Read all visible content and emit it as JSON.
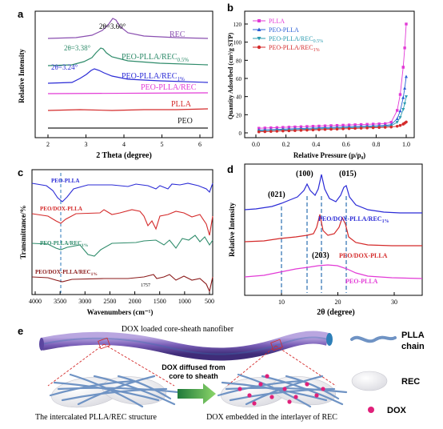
{
  "panels": {
    "a": {
      "letter": "a",
      "xlabel": "2 Theta (degree)",
      "ylabel": "Relative Intensity",
      "xticks": [
        "2",
        "3",
        "4",
        "5",
        "6"
      ],
      "annotations": [
        "2θ=3.60°",
        "2θ=3.38°",
        "2θ=3.24°"
      ],
      "curves": [
        {
          "label": "REC",
          "color": "#8a4fb0"
        },
        {
          "label": "PEO-PLLA/REC",
          "sub": "0.5%",
          "color": "#2e8b6a"
        },
        {
          "label": "PEO-PLLA/REC",
          "sub": "1%",
          "color": "#2b2bd6"
        },
        {
          "label": "PEO-PLLA/REC",
          "color": "#e23ad6"
        },
        {
          "label": "PLLA",
          "color": "#d42a2a"
        },
        {
          "label": "PEO",
          "color": "#222222"
        }
      ]
    },
    "b": {
      "letter": "b",
      "xlabel": "Relative Pressure (p/p₀)",
      "ylabel": "Quantity Adsorbed (cm³/g STP)",
      "xticks": [
        "0.0",
        "0.2",
        "0.4",
        "0.6",
        "0.8",
        "1.0"
      ],
      "yticks": [
        "0",
        "20",
        "40",
        "60",
        "80",
        "100",
        "120"
      ],
      "legend": [
        {
          "label": "PLLA",
          "color": "#e23ad6",
          "marker": "square"
        },
        {
          "label": "PEO-PLLA",
          "color": "#2b5fd6",
          "marker": "triangle"
        },
        {
          "label": "PEO-PLLA/REC",
          "sub": "0.5%",
          "color": "#2a9bb0",
          "marker": "down"
        },
        {
          "label": "PEO-PLLA/REC",
          "sub": "1%",
          "color": "#d42a2a",
          "marker": "circle"
        }
      ]
    },
    "c": {
      "letter": "c",
      "xlabel": "Wavenumbers (cm⁻¹)",
      "ylabel": "Transmittance/%",
      "xticks": [
        "4000",
        "3500",
        "3000",
        "2500",
        "2000",
        "1500",
        "1000",
        "500"
      ],
      "marker_label": "1757",
      "curves": [
        {
          "label": "PEO-PLLA",
          "color": "#2b2bd6"
        },
        {
          "label": "PEO/DOX-PLLA",
          "color": "#d42a2a"
        },
        {
          "label": "PEO-PLLA/REC",
          "sub": "1%",
          "color": "#2e8b6a"
        },
        {
          "label": "PEO/DOX-PLLA/REC",
          "sub": "1%",
          "color": "#8b1a1a"
        }
      ]
    },
    "d": {
      "letter": "d",
      "xlabel": "2θ (degree)",
      "ylabel": "Relative Intensity",
      "xticks": [
        "10",
        "20",
        "30"
      ],
      "peaks": [
        "(021)",
        "(100)",
        "(015)",
        "(203)"
      ],
      "curves": [
        {
          "label": "PEO/DOX-PLLA/REC",
          "sub": "1%",
          "color": "#2b2bd6"
        },
        {
          "label": "PEO/DOX-PLLA",
          "color": "#d42a2a"
        },
        {
          "label": "PEO-PLLA",
          "color": "#e23ad6"
        }
      ]
    },
    "e": {
      "letter": "e",
      "title": "DOX loaded core-sheath nanofiber",
      "arrow_text": [
        "DOX diffused from",
        "core to sheath"
      ],
      "left_caption": "The intercalated PLLA/REC structure",
      "right_caption": "DOX embedded in the interlayer of REC",
      "legend": [
        "PLLA",
        "chain",
        "REC",
        "DOX"
      ],
      "colors": {
        "fiber": "#7a5fb8",
        "chain": "#6f93c4",
        "dox": "#e0207a",
        "rec": "#f2f2f4"
      }
    }
  }
}
